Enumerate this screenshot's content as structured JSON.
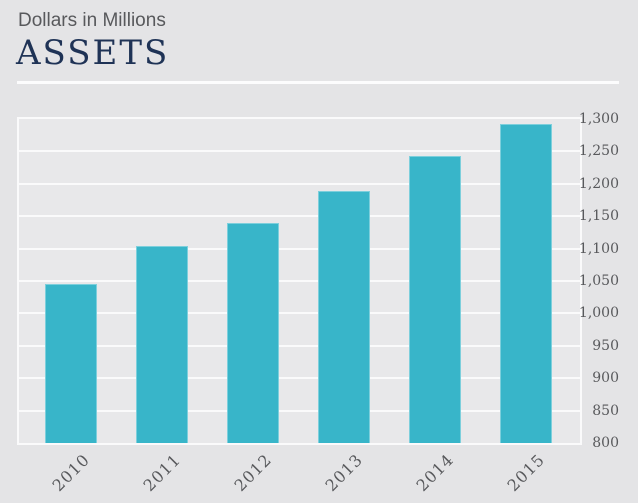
{
  "header": {
    "subtitle": "Dollars in Millions",
    "title": "ASSETS"
  },
  "colors": {
    "background": "#e4e4e6",
    "plot_background": "#e8e8ea",
    "gridline": "#fafafb",
    "bar": "#38b5c9",
    "title_text": "#1f3356",
    "axis_text": "#58595c"
  },
  "chart_data": {
    "type": "bar",
    "title": "ASSETS",
    "subtitle": "Dollars in Millions",
    "series_name": "Assets",
    "categories": [
      "2010",
      "2011",
      "2012",
      "2013",
      "2014",
      "2015"
    ],
    "values": [
      1045,
      1104,
      1139,
      1189,
      1243,
      1292
    ],
    "ylim": [
      800,
      1300
    ],
    "ytick_step": 50,
    "ytick_labels": [
      "800",
      "850",
      "900",
      "950",
      "1,000",
      "1,050",
      "1,100",
      "1,150",
      "1,200",
      "1,250",
      "1,300"
    ],
    "yaxis_side": "right",
    "grid": true,
    "legend": false,
    "xlabel": "",
    "ylabel": ""
  }
}
